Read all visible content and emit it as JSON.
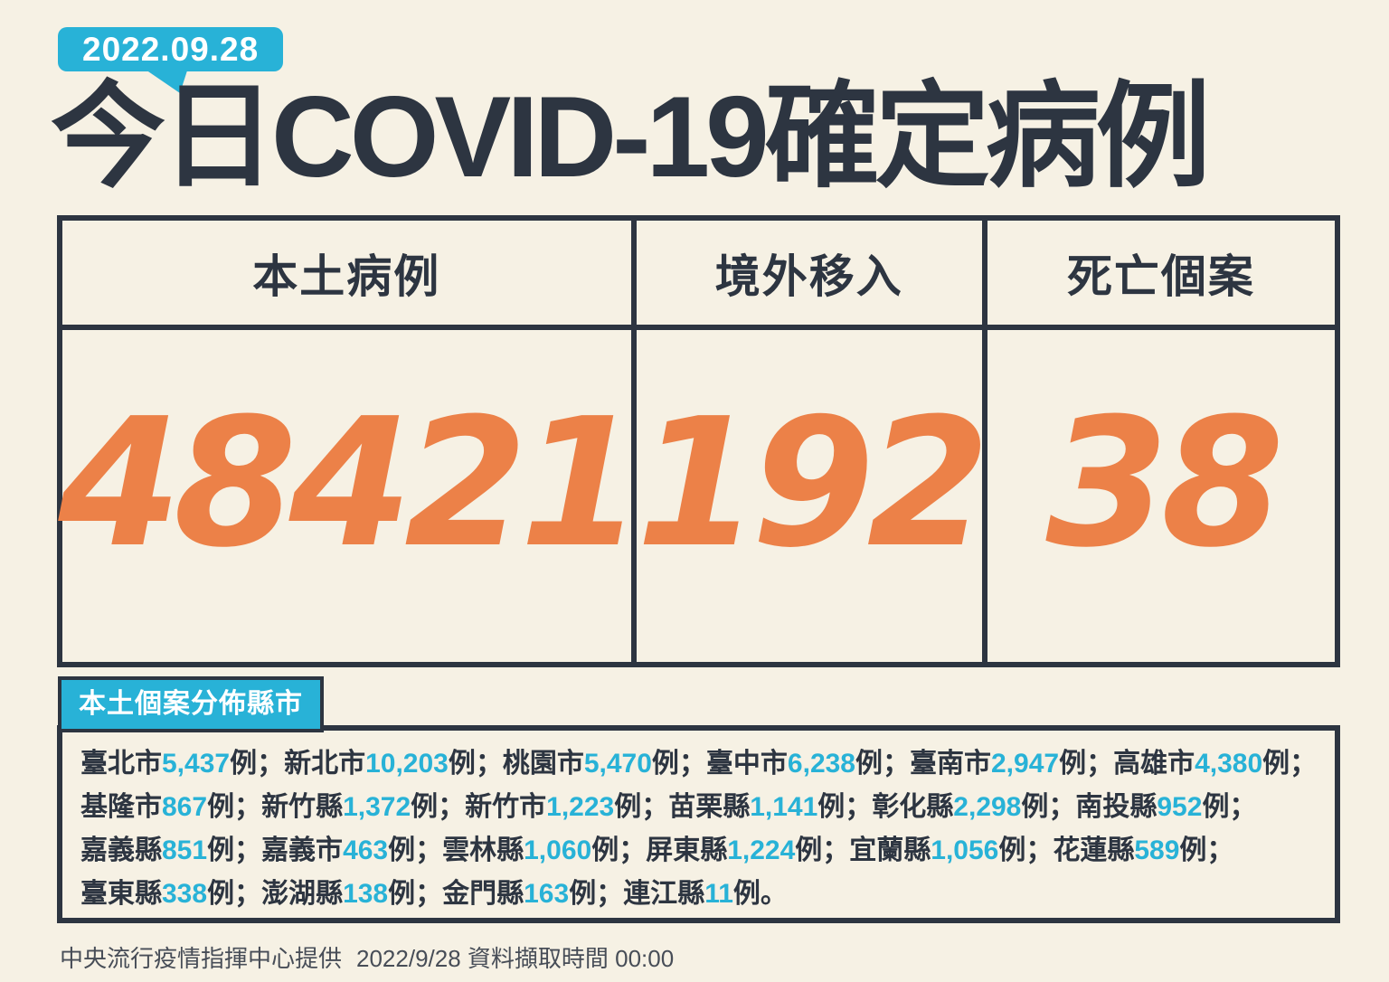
{
  "colors": {
    "background": "#f6f1e4",
    "dark": "#2d3541",
    "cyan": "#28b2d7",
    "orange": "#ec8148",
    "white": "#ffffff",
    "footer_gray": "#474d57"
  },
  "header": {
    "date": "2022.09.28",
    "title": "今日COVID-19確定病例"
  },
  "summary": {
    "cards": [
      {
        "label": "本土病例",
        "value": "48421"
      },
      {
        "label": "境外移入",
        "value": "192"
      },
      {
        "label": "死亡個案",
        "value": "38"
      }
    ]
  },
  "distribution": {
    "badge": "本土個案分佈縣市",
    "unit": "例",
    "separator": "；",
    "terminator": "。",
    "lines": [
      [
        {
          "region": "臺北市",
          "count": "5,437"
        },
        {
          "region": "新北市",
          "count": "10,203"
        },
        {
          "region": "桃園市",
          "count": "5,470"
        },
        {
          "region": "臺中市",
          "count": "6,238"
        },
        {
          "region": "臺南市",
          "count": "2,947"
        },
        {
          "region": "高雄市",
          "count": "4,380"
        }
      ],
      [
        {
          "region": "基隆市",
          "count": "867"
        },
        {
          "region": "新竹縣",
          "count": "1,372"
        },
        {
          "region": "新竹市",
          "count": "1,223"
        },
        {
          "region": "苗栗縣",
          "count": "1,141"
        },
        {
          "region": "彰化縣",
          "count": "2,298"
        },
        {
          "region": "南投縣",
          "count": "952"
        }
      ],
      [
        {
          "region": "嘉義縣",
          "count": "851"
        },
        {
          "region": "嘉義市",
          "count": "463"
        },
        {
          "region": "雲林縣",
          "count": "1,060"
        },
        {
          "region": "屏東縣",
          "count": "1,224"
        },
        {
          "region": "宜蘭縣",
          "count": "1,056"
        },
        {
          "region": "花蓮縣",
          "count": "589"
        }
      ],
      [
        {
          "region": "臺東縣",
          "count": "338"
        },
        {
          "region": "澎湖縣",
          "count": "138"
        },
        {
          "region": "金門縣",
          "count": "163"
        },
        {
          "region": "連江縣",
          "count": "11"
        }
      ]
    ]
  },
  "footer": {
    "provider": "中央流行疫情指揮中心提供",
    "retrieved": "2022/9/28 資料擷取時間 00:00"
  }
}
